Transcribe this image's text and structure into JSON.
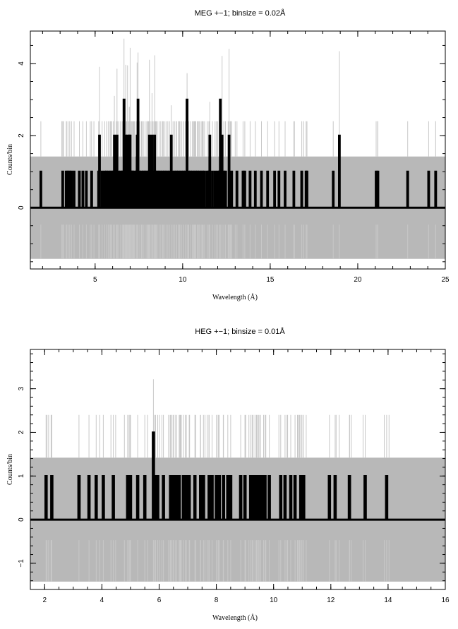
{
  "chart_data": [
    {
      "type": "line",
      "title": "MEG +−1; binsize = 0.02Å",
      "xlabel": "Wavelength (Å)",
      "ylabel": "Counts/bin",
      "xlim": [
        1.3,
        25
      ],
      "ylim": [
        -1.7,
        4.9
      ],
      "xticks": [
        5,
        10,
        15,
        20,
        25
      ],
      "xtick_labels": [
        "5",
        "10",
        "15",
        "20",
        "25"
      ],
      "yticks": [
        0,
        2,
        4
      ],
      "ytick_labels": [
        "0",
        "2",
        "4"
      ],
      "error_band": {
        "color": "#b8b8b8",
        "upper": 1.42,
        "lower": -1.42
      },
      "series": [
        {
          "type": "spikes",
          "color": "#000000",
          "values": [
            [
              1.9,
              1
            ],
            [
              3.15,
              1
            ],
            [
              3.35,
              1
            ],
            [
              3.45,
              1
            ],
            [
              3.55,
              1
            ],
            [
              3.65,
              1
            ],
            [
              3.8,
              1
            ],
            [
              4.1,
              1
            ],
            [
              4.3,
              1
            ],
            [
              4.5,
              1
            ],
            [
              4.8,
              1
            ],
            [
              5.2,
              1
            ],
            [
              5.25,
              2
            ],
            [
              5.4,
              1
            ],
            [
              5.55,
              1
            ],
            [
              5.65,
              1
            ],
            [
              5.75,
              1
            ],
            [
              5.85,
              1
            ],
            [
              5.95,
              1
            ],
            [
              6.05,
              1
            ],
            [
              6.1,
              2
            ],
            [
              6.2,
              1
            ],
            [
              6.25,
              2
            ],
            [
              6.35,
              1
            ],
            [
              6.45,
              1
            ],
            [
              6.55,
              1
            ],
            [
              6.6,
              1
            ],
            [
              6.65,
              3
            ],
            [
              6.7,
              1
            ],
            [
              6.75,
              2
            ],
            [
              6.8,
              1
            ],
            [
              6.85,
              2
            ],
            [
              6.9,
              1
            ],
            [
              6.95,
              2
            ],
            [
              7.0,
              2
            ],
            [
              7.05,
              1
            ],
            [
              7.1,
              1
            ],
            [
              7.15,
              1
            ],
            [
              7.25,
              1
            ],
            [
              7.35,
              1
            ],
            [
              7.4,
              2
            ],
            [
              7.45,
              3
            ],
            [
              7.55,
              1
            ],
            [
              7.65,
              1
            ],
            [
              7.75,
              1
            ],
            [
              7.85,
              1
            ],
            [
              7.95,
              1
            ],
            [
              8.05,
              1
            ],
            [
              8.1,
              2
            ],
            [
              8.15,
              1
            ],
            [
              8.25,
              2
            ],
            [
              8.3,
              1
            ],
            [
              8.4,
              2
            ],
            [
              8.45,
              1
            ],
            [
              8.55,
              1
            ],
            [
              8.65,
              1
            ],
            [
              8.75,
              1
            ],
            [
              8.85,
              1
            ],
            [
              8.95,
              1
            ],
            [
              9.05,
              1
            ],
            [
              9.15,
              1
            ],
            [
              9.25,
              1
            ],
            [
              9.35,
              2
            ],
            [
              9.45,
              1
            ],
            [
              9.55,
              1
            ],
            [
              9.65,
              1
            ],
            [
              9.75,
              1
            ],
            [
              9.85,
              1
            ],
            [
              9.95,
              1
            ],
            [
              10.05,
              1
            ],
            [
              10.15,
              1
            ],
            [
              10.25,
              3
            ],
            [
              10.35,
              1
            ],
            [
              10.45,
              1
            ],
            [
              10.55,
              1
            ],
            [
              10.65,
              1
            ],
            [
              10.75,
              1
            ],
            [
              10.85,
              1
            ],
            [
              10.95,
              1
            ],
            [
              11.05,
              1
            ],
            [
              11.15,
              1
            ],
            [
              11.25,
              1
            ],
            [
              11.4,
              1
            ],
            [
              11.5,
              1
            ],
            [
              11.55,
              2
            ],
            [
              11.7,
              1
            ],
            [
              11.85,
              1
            ],
            [
              12.0,
              1
            ],
            [
              12.1,
              1
            ],
            [
              12.15,
              3
            ],
            [
              12.25,
              2
            ],
            [
              12.35,
              1
            ],
            [
              12.45,
              1
            ],
            [
              12.65,
              2
            ],
            [
              12.8,
              1
            ],
            [
              13.1,
              1
            ],
            [
              13.45,
              1
            ],
            [
              13.55,
              1
            ],
            [
              13.85,
              1
            ],
            [
              14.15,
              1
            ],
            [
              14.5,
              1
            ],
            [
              14.85,
              1
            ],
            [
              15.25,
              1
            ],
            [
              15.5,
              1
            ],
            [
              15.85,
              1
            ],
            [
              16.35,
              1
            ],
            [
              16.8,
              1
            ],
            [
              17.05,
              1
            ],
            [
              17.1,
              1
            ],
            [
              18.6,
              1
            ],
            [
              18.95,
              2
            ],
            [
              21.05,
              1
            ],
            [
              21.15,
              1
            ],
            [
              22.85,
              1
            ],
            [
              24.05,
              1
            ],
            [
              24.45,
              1
            ]
          ]
        }
      ]
    },
    {
      "type": "line",
      "title": "HEG +−1; binsize = 0.01Å",
      "xlabel": "Wavelength (Å)",
      "ylabel": "Counts/bin",
      "xlim": [
        1.5,
        16
      ],
      "ylim": [
        -1.6,
        3.9
      ],
      "xticks": [
        2,
        4,
        6,
        8,
        10,
        12,
        14,
        16
      ],
      "xtick_labels": [
        "2",
        "4",
        "6",
        "8",
        "10",
        "12",
        "14",
        "16"
      ],
      "yticks": [
        -1,
        0,
        1,
        2,
        3
      ],
      "ytick_labels": [
        "−1",
        "0",
        "1",
        "2",
        "3"
      ],
      "error_band": {
        "color": "#b8b8b8",
        "upper": 1.42,
        "lower": -1.42
      },
      "series": [
        {
          "type": "spikes",
          "color": "#000000",
          "values": [
            [
              2.05,
              1
            ],
            [
              2.25,
              1
            ],
            [
              3.2,
              1
            ],
            [
              3.55,
              1
            ],
            [
              3.8,
              1
            ],
            [
              4.05,
              1
            ],
            [
              4.4,
              1
            ],
            [
              4.9,
              1
            ],
            [
              4.95,
              1
            ],
            [
              5.0,
              1
            ],
            [
              5.25,
              1
            ],
            [
              5.5,
              1
            ],
            [
              5.8,
              2
            ],
            [
              5.85,
              1
            ],
            [
              5.95,
              1
            ],
            [
              6.15,
              1
            ],
            [
              6.4,
              1
            ],
            [
              6.45,
              1
            ],
            [
              6.5,
              1
            ],
            [
              6.6,
              1
            ],
            [
              6.7,
              1
            ],
            [
              6.85,
              1
            ],
            [
              6.95,
              1
            ],
            [
              7.05,
              1
            ],
            [
              7.25,
              1
            ],
            [
              7.45,
              1
            ],
            [
              7.55,
              1
            ],
            [
              7.75,
              1
            ],
            [
              7.85,
              1
            ],
            [
              8.0,
              1
            ],
            [
              8.1,
              1
            ],
            [
              8.25,
              1
            ],
            [
              8.4,
              1
            ],
            [
              8.5,
              1
            ],
            [
              8.85,
              1
            ],
            [
              9.0,
              1
            ],
            [
              9.2,
              1
            ],
            [
              9.25,
              1
            ],
            [
              9.35,
              1
            ],
            [
              9.4,
              1
            ],
            [
              9.45,
              1
            ],
            [
              9.55,
              1
            ],
            [
              9.65,
              1
            ],
            [
              9.7,
              1
            ],
            [
              9.85,
              1
            ],
            [
              10.25,
              1
            ],
            [
              10.4,
              1
            ],
            [
              10.6,
              1
            ],
            [
              10.75,
              1
            ],
            [
              10.95,
              1
            ],
            [
              11.05,
              1
            ],
            [
              11.95,
              1
            ],
            [
              12.15,
              1
            ],
            [
              12.65,
              1
            ],
            [
              13.2,
              1
            ],
            [
              13.95,
              1
            ]
          ]
        }
      ]
    }
  ]
}
